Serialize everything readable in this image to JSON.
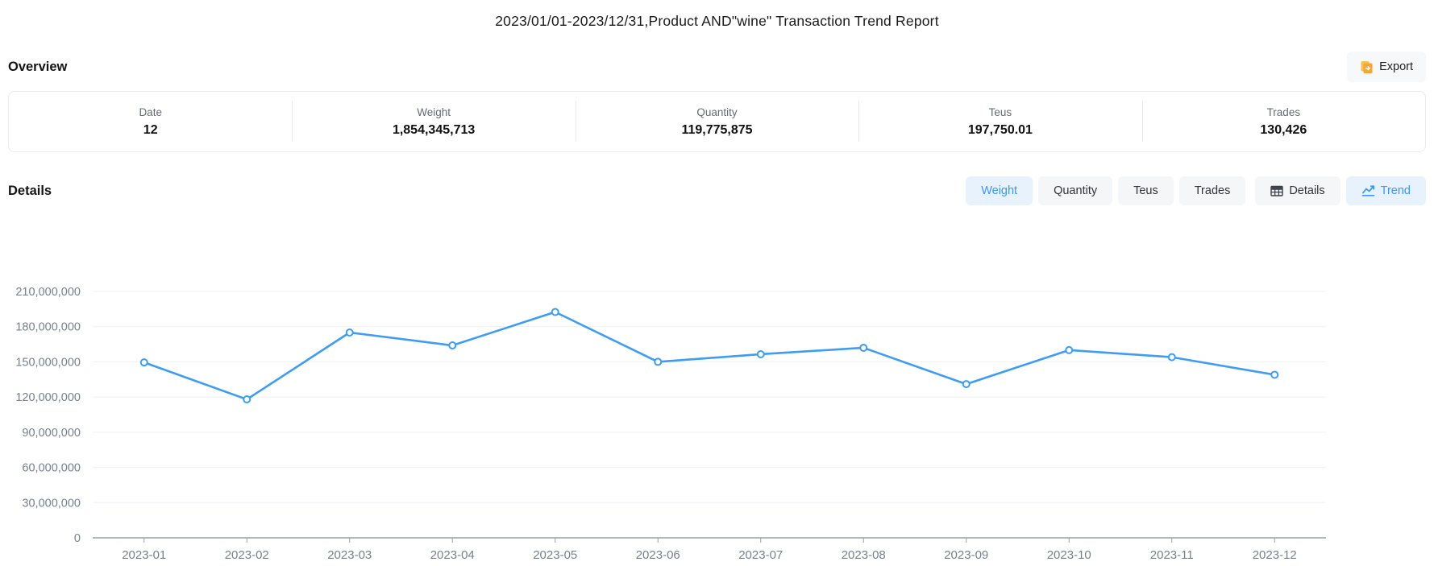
{
  "page": {
    "title": "2023/01/01-2023/12/31,Product AND\"wine\" Transaction Trend Report"
  },
  "overview": {
    "heading": "Overview",
    "export_label": "Export",
    "export_icon": "file-export-icon",
    "export_icon_color": "#f6a632",
    "stats": [
      {
        "label": "Date",
        "value": "12"
      },
      {
        "label": "Weight",
        "value": "1,854,345,713"
      },
      {
        "label": "Quantity",
        "value": "119,775,875"
      },
      {
        "label": "Teus",
        "value": "197,750.01"
      },
      {
        "label": "Trades",
        "value": "130,426"
      }
    ]
  },
  "details": {
    "heading": "Details",
    "metric_tabs": [
      {
        "label": "Weight",
        "active": true
      },
      {
        "label": "Quantity",
        "active": false
      },
      {
        "label": "Teus",
        "active": false
      },
      {
        "label": "Trades",
        "active": false
      }
    ],
    "view_toggles": [
      {
        "label": "Details",
        "icon": "table-icon",
        "active": false
      },
      {
        "label": "Trend",
        "icon": "line-chart-icon",
        "active": true
      }
    ]
  },
  "colors": {
    "accent_blue": "#3e97f0",
    "active_tab_bg": "#e7f2fd",
    "inactive_tab_bg": "#f5f6f8",
    "grid_line": "#eef1f6",
    "axis_line": "#99a0ab",
    "axis_text": "#76808e"
  },
  "chart_data": {
    "type": "line",
    "title": "",
    "xlabel": "",
    "ylabel": "",
    "x": [
      "2023-01",
      "2023-02",
      "2023-03",
      "2023-04",
      "2023-05",
      "2023-06",
      "2023-07",
      "2023-08",
      "2023-09",
      "2023-10",
      "2023-11",
      "2023-12"
    ],
    "series": [
      {
        "name": "Weight",
        "values": [
          149500000,
          118000000,
          175000000,
          164000000,
          192500000,
          150000000,
          156500000,
          162000000,
          131000000,
          160000000,
          154000000,
          139000000
        ]
      }
    ],
    "ylim": [
      0,
      210000000
    ],
    "y_tick_step": 30000000,
    "y_tick_labels": [
      "0",
      "30,000,000",
      "60,000,000",
      "90,000,000",
      "120,000,000",
      "150,000,000",
      "180,000,000",
      "210,000,000"
    ],
    "grid": true,
    "legend_position": "none",
    "line_color": "#3e9df2",
    "marker": "hollow-circle"
  }
}
